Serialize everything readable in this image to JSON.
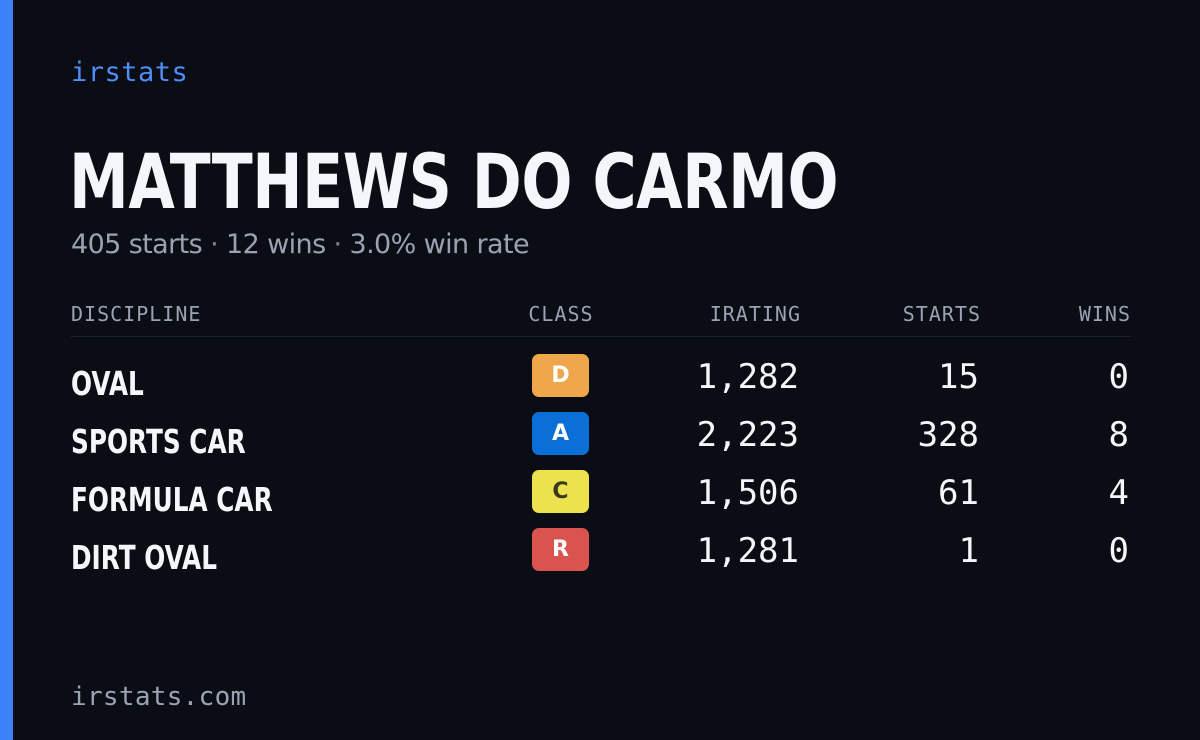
{
  "brand": "irstats",
  "player": {
    "name": "MATTHEWS DO CARMO",
    "starts_text": "405 starts",
    "wins_text": "12 wins",
    "win_rate_text": "3.0% win rate",
    "separator": "·"
  },
  "table": {
    "headers": {
      "discipline": "DISCIPLINE",
      "class": "CLASS",
      "irating": "IRATING",
      "starts": "STARTS",
      "wins": "WINS"
    },
    "rows": [
      {
        "discipline": "OVAL",
        "class": "D",
        "class_color": "#eea74a",
        "class_text_color": "#ffffff",
        "irating": "1,282",
        "starts": "15",
        "wins": "0"
      },
      {
        "discipline": "SPORTS CAR",
        "class": "A",
        "class_color": "#0b6fd8",
        "class_text_color": "#ffffff",
        "irating": "2,223",
        "starts": "328",
        "wins": "8"
      },
      {
        "discipline": "FORMULA CAR",
        "class": "C",
        "class_color": "#ece24e",
        "class_text_color": "#3a3a1a",
        "irating": "1,506",
        "starts": "61",
        "wins": "4"
      },
      {
        "discipline": "DIRT OVAL",
        "class": "R",
        "class_color": "#d9534f",
        "class_text_color": "#ffffff",
        "irating": "1,281",
        "starts": "1",
        "wins": "0"
      }
    ]
  },
  "footer": "irstats.com",
  "colors": {
    "background": "#0a0d14",
    "accent": "#3b82f6",
    "brand": "#4f8df7",
    "primary_text": "#f4f6fb",
    "muted_text": "#9aa3b2"
  }
}
